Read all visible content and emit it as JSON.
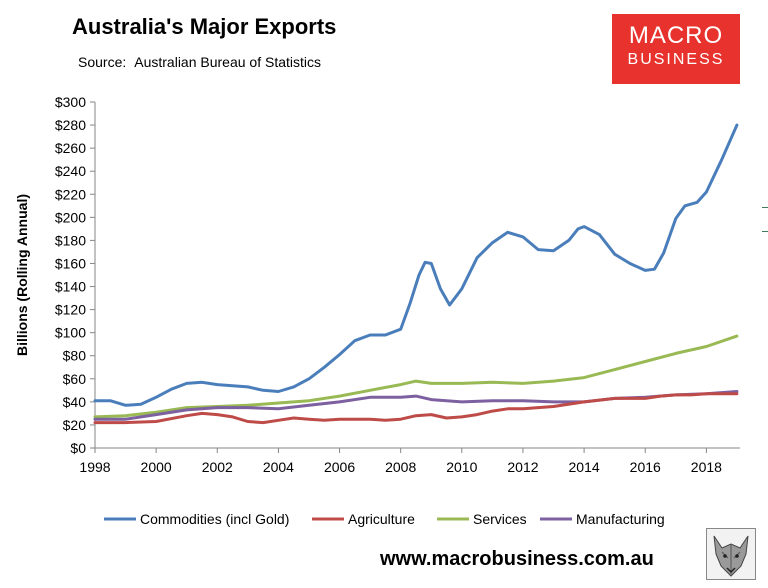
{
  "header": {
    "title": "Australia's Major Exports",
    "source_label": "Source:",
    "source_text": "Australian Bureau of Statistics"
  },
  "logo": {
    "line1": "MACRO",
    "line2": "BUSINESS",
    "color": "#e8322d"
  },
  "footer": {
    "website": "www.macrobusiness.com.au"
  },
  "chart_data": {
    "type": "line",
    "ylabel": "Billions (Rolling Annual)",
    "xlabel": "",
    "xlim": [
      1998,
      2019.1
    ],
    "ylim": [
      0,
      300
    ],
    "y_ticks": [
      "$0",
      "$20",
      "$40",
      "$60",
      "$80",
      "$100",
      "$120",
      "$140",
      "$160",
      "$180",
      "$200",
      "$220",
      "$240",
      "$260",
      "$280",
      "$300"
    ],
    "x_ticks": [
      "1998",
      "2000",
      "2002",
      "2004",
      "2006",
      "2008",
      "2010",
      "2012",
      "2014",
      "2016",
      "2018"
    ],
    "legend_position": "bottom",
    "series": [
      {
        "name": "Commodities (incl Gold)",
        "color": "#4a7ebb",
        "x": [
          1998,
          1998.5,
          1999,
          1999.5,
          2000,
          2000.5,
          2001,
          2001.5,
          2002,
          2002.5,
          2003,
          2003.5,
          2004,
          2004.5,
          2005,
          2005.5,
          2006,
          2006.5,
          2007,
          2007.5,
          2008,
          2008.3,
          2008.6,
          2008.8,
          2009,
          2009.3,
          2009.6,
          2010,
          2010.5,
          2011,
          2011.5,
          2012,
          2012.5,
          2013,
          2013.5,
          2013.8,
          2014,
          2014.5,
          2015,
          2015.5,
          2016,
          2016.3,
          2016.6,
          2017,
          2017.3,
          2017.7,
          2018,
          2018.5,
          2019
        ],
        "values": [
          41,
          41,
          37,
          38,
          44,
          51,
          56,
          57,
          55,
          54,
          53,
          50,
          49,
          53,
          60,
          70,
          81,
          93,
          98,
          98,
          103,
          125,
          150,
          161,
          160,
          138,
          124,
          138,
          165,
          178,
          187,
          183,
          172,
          171,
          180,
          190,
          192,
          185,
          168,
          160,
          154,
          155,
          169,
          199,
          210,
          213,
          222,
          250,
          280
        ]
      },
      {
        "name": "Agriculture",
        "color": "#be4b48",
        "x": [
          1998,
          1999,
          2000,
          2001,
          2001.5,
          2002,
          2002.5,
          2003,
          2003.5,
          2004,
          2004.5,
          2005,
          2005.5,
          2006,
          2006.5,
          2007,
          2007.5,
          2008,
          2008.5,
          2009,
          2009.5,
          2010,
          2010.5,
          2011,
          2011.5,
          2012,
          2013,
          2014,
          2015,
          2016,
          2016.5,
          2017,
          2017.5,
          2018,
          2018.5,
          2019
        ],
        "values": [
          22,
          22,
          23,
          28,
          30,
          29,
          27,
          23,
          22,
          24,
          26,
          25,
          24,
          25,
          25,
          25,
          24,
          25,
          28,
          29,
          26,
          27,
          29,
          32,
          34,
          34,
          36,
          40,
          43,
          43,
          45,
          46,
          46,
          47,
          47,
          47
        ]
      },
      {
        "name": "Services",
        "color": "#98b954",
        "x": [
          1998,
          1999,
          2000,
          2001,
          2002,
          2003,
          2004,
          2005,
          2006,
          2007,
          2008,
          2008.5,
          2009,
          2010,
          2011,
          2012,
          2013,
          2014,
          2015,
          2016,
          2017,
          2018,
          2019
        ],
        "values": [
          27,
          28,
          31,
          35,
          36,
          37,
          39,
          41,
          45,
          50,
          55,
          58,
          56,
          56,
          57,
          56,
          58,
          61,
          68,
          75,
          82,
          88,
          97
        ]
      },
      {
        "name": "Manufacturing",
        "color": "#7d60a0",
        "x": [
          1998,
          1999,
          2000,
          2001,
          2002,
          2003,
          2004,
          2005,
          2006,
          2007,
          2008,
          2008.5,
          2009,
          2010,
          2011,
          2012,
          2013,
          2014,
          2015,
          2016,
          2017,
          2018,
          2019
        ],
        "values": [
          25,
          25,
          29,
          33,
          35,
          35,
          34,
          37,
          40,
          44,
          44,
          45,
          42,
          40,
          41,
          41,
          40,
          40,
          43,
          44,
          46,
          47,
          49
        ]
      }
    ]
  }
}
